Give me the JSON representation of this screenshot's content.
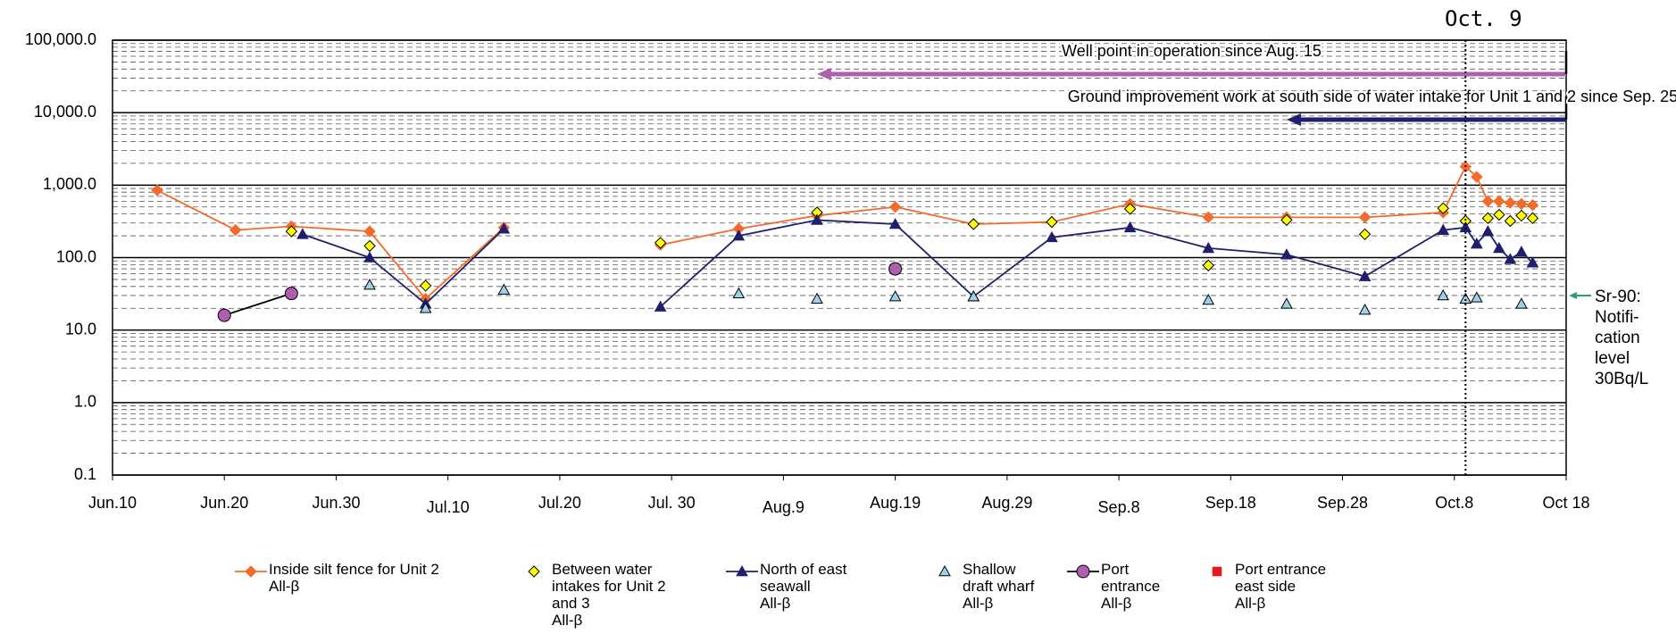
{
  "chart_data": {
    "type": "line",
    "log_scale": true,
    "grid": true,
    "xlim": [
      "06-10",
      "10-18"
    ],
    "xticks": [
      {
        "value": "06-10",
        "label": "Jun.10"
      },
      {
        "value": "06-20",
        "label": "Jun.20"
      },
      {
        "value": "06-30",
        "label": "Jun.30"
      },
      {
        "value": "07-10",
        "label": "Jul.10"
      },
      {
        "value": "07-20",
        "label": "Jul.20"
      },
      {
        "value": "07-30",
        "label": "Jul. 30"
      },
      {
        "value": "08-09",
        "label": "Aug.9"
      },
      {
        "value": "08-19",
        "label": "Aug.19"
      },
      {
        "value": "08-29",
        "label": "Aug.29"
      },
      {
        "value": "09-08",
        "label": "Sep.8"
      },
      {
        "value": "09-18",
        "label": "Sep.18"
      },
      {
        "value": "09-28",
        "label": "Sep.28"
      },
      {
        "value": "10-08",
        "label": "Oct.8"
      },
      {
        "value": "10-18",
        "label": "Oct 18"
      }
    ],
    "ylim": [
      0.1,
      100000
    ],
    "yticks": [
      {
        "value": 0.1,
        "label": "0.1"
      },
      {
        "value": 1,
        "label": "1.0"
      },
      {
        "value": 10,
        "label": "10.0"
      },
      {
        "value": 100,
        "label": "100.0"
      },
      {
        "value": 1000,
        "label": "1,000.0"
      },
      {
        "value": 10000,
        "label": "10,000.0"
      },
      {
        "value": 100000,
        "label": "100,000.0"
      }
    ],
    "series": [
      {
        "name": "Inside silt fence for Unit 2\nAll-β",
        "color": "#f26b2a",
        "marker": "diamond",
        "line": true,
        "x": [
          "06-14",
          "06-21",
          "06-26",
          "07-03",
          "07-08",
          "07-15",
          "07-22",
          "07-29",
          "08-05",
          "08-12",
          "08-19",
          "08-26",
          "09-02",
          "09-09",
          "09-16",
          "09-23",
          "09-30",
          "10-07",
          "10-09",
          "10-10",
          "10-11",
          "10-12",
          "10-13",
          "10-14",
          "10-15"
        ],
        "values": [
          850,
          240,
          270,
          230,
          27,
          260,
          null,
          150,
          250,
          380,
          500,
          290,
          310,
          550,
          360,
          360,
          360,
          420,
          1800,
          1300,
          600,
          600,
          570,
          550,
          530
        ]
      },
      {
        "name": "Between water\nintakes for Unit 2\nand 3\nAll-β",
        "color": "#ffff00",
        "marker": "diamond",
        "line": false,
        "x": [
          "06-26",
          "07-03",
          "07-08",
          "07-29",
          "08-12",
          "08-26",
          "09-02",
          "09-09",
          "09-16",
          "09-23",
          "09-30",
          "10-07",
          "10-09",
          "10-11",
          "10-12",
          "10-13",
          "10-14",
          "10-15"
        ],
        "values": [
          230,
          145,
          41,
          160,
          420,
          290,
          310,
          470,
          78,
          330,
          210,
          480,
          320,
          350,
          390,
          320,
          380,
          350
        ]
      },
      {
        "name": "North of east\nseawall\nAll-β",
        "color": "#1f1f6e",
        "marker": "triangle",
        "line": true,
        "x": [
          "06-27",
          "07-03",
          "07-08",
          "07-15",
          "07-22",
          "07-29",
          "08-05",
          "08-12",
          "08-19",
          "08-26",
          "09-02",
          "09-09",
          "09-16",
          "09-23",
          "09-30",
          "10-07",
          "10-09",
          "10-10",
          "10-11",
          "10-12",
          "10-13",
          "10-14",
          "10-15"
        ],
        "values": [
          210,
          100,
          23,
          250,
          null,
          21,
          200,
          330,
          290,
          29,
          190,
          260,
          135,
          110,
          55,
          240,
          260,
          155,
          230,
          135,
          95,
          120,
          85
        ]
      },
      {
        "name": "Shallow\ndraft wharf\nAll-β",
        "color": "#9dd3e8",
        "marker": "triangle",
        "line": false,
        "x": [
          "07-03",
          "07-08",
          "07-15",
          "08-05",
          "08-12",
          "08-19",
          "08-26",
          "09-16",
          "09-23",
          "09-30",
          "10-07",
          "10-09",
          "10-10",
          "10-14"
        ],
        "values": [
          42,
          20,
          36,
          32,
          27,
          29,
          29,
          26,
          23,
          19,
          30,
          27,
          28,
          23
        ]
      },
      {
        "name": "Port\nentrance\nAll-β",
        "color": "#b05fb0",
        "marker": "circle",
        "line": true,
        "x": [
          "06-20",
          "06-26",
          "07-22",
          "08-19"
        ],
        "values": [
          16,
          32,
          null,
          70
        ]
      },
      {
        "name": "Port entrance\n east side\nAll-β",
        "color": "#e8191c",
        "marker": "square",
        "line": false,
        "x": [],
        "values": []
      }
    ],
    "annotations": [
      {
        "text": "Well point in operation since Aug. 15",
        "x": "08-12",
        "color": "#b05fb0",
        "y": 83
      },
      {
        "text": "Ground improvement work at south side of water intake for Unit 1 and 2 since Sep. 25",
        "x": "09-23",
        "color": "#1f1f6e",
        "y": 134
      }
    ],
    "marker_line": {
      "x": "10-09",
      "label": "Oct. 9"
    },
    "notification": {
      "value": 30,
      "label": "Sr-90:\nNotifi-\ncation\nlevel\n30Bq/L",
      "color": "#2e9e6e"
    }
  }
}
